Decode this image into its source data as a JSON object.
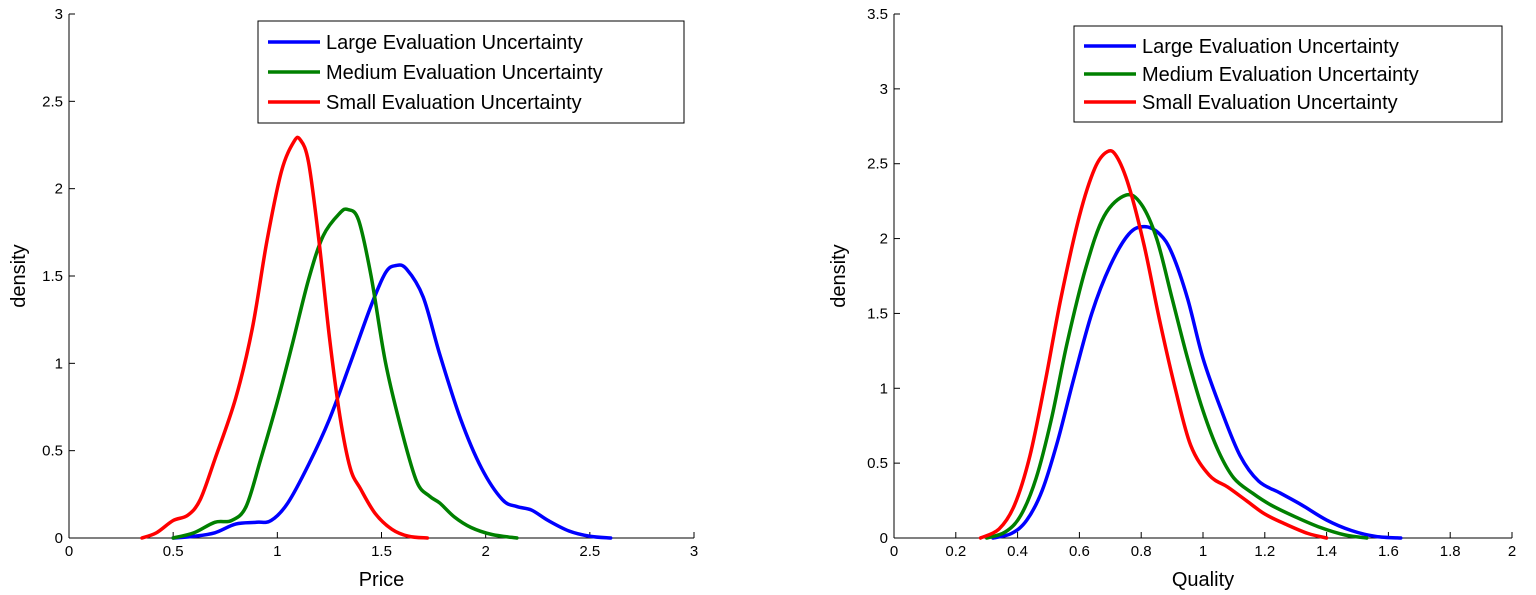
{
  "chart_data": [
    {
      "type": "line",
      "title": "",
      "xlabel": "Price",
      "ylabel": "density",
      "xlim": [
        0,
        3
      ],
      "ylim": [
        0,
        3
      ],
      "xticks": [
        "0",
        "0.5",
        "1",
        "1.5",
        "2",
        "2.5",
        "3"
      ],
      "yticks": [
        "0",
        "0.5",
        "1",
        "1.5",
        "2",
        "2.5",
        "3"
      ],
      "legend_position": "top-right",
      "grid": false,
      "series": [
        {
          "name": "Large Evaluation Uncertainty",
          "color": "#0000ff",
          "points": [
            [
              0.5,
              0
            ],
            [
              0.6,
              0.01
            ],
            [
              0.7,
              0.03
            ],
            [
              0.8,
              0.08
            ],
            [
              0.9,
              0.09
            ],
            [
              0.97,
              0.1
            ],
            [
              1.05,
              0.2
            ],
            [
              1.15,
              0.42
            ],
            [
              1.25,
              0.68
            ],
            [
              1.35,
              1.0
            ],
            [
              1.45,
              1.33
            ],
            [
              1.52,
              1.52
            ],
            [
              1.57,
              1.56
            ],
            [
              1.62,
              1.54
            ],
            [
              1.7,
              1.38
            ],
            [
              1.78,
              1.05
            ],
            [
              1.88,
              0.68
            ],
            [
              1.98,
              0.4
            ],
            [
              2.08,
              0.22
            ],
            [
              2.15,
              0.18
            ],
            [
              2.22,
              0.16
            ],
            [
              2.3,
              0.1
            ],
            [
              2.4,
              0.04
            ],
            [
              2.5,
              0.01
            ],
            [
              2.6,
              0.0
            ]
          ]
        },
        {
          "name": "Medium Evaluation Uncertainty",
          "color": "#008000",
          "points": [
            [
              0.5,
              0
            ],
            [
              0.6,
              0.03
            ],
            [
              0.7,
              0.09
            ],
            [
              0.78,
              0.1
            ],
            [
              0.85,
              0.18
            ],
            [
              0.92,
              0.45
            ],
            [
              1.0,
              0.78
            ],
            [
              1.07,
              1.1
            ],
            [
              1.15,
              1.48
            ],
            [
              1.22,
              1.73
            ],
            [
              1.3,
              1.86
            ],
            [
              1.34,
              1.88
            ],
            [
              1.39,
              1.82
            ],
            [
              1.45,
              1.5
            ],
            [
              1.52,
              1.0
            ],
            [
              1.6,
              0.6
            ],
            [
              1.67,
              0.32
            ],
            [
              1.73,
              0.24
            ],
            [
              1.78,
              0.2
            ],
            [
              1.85,
              0.12
            ],
            [
              1.93,
              0.06
            ],
            [
              2.03,
              0.02
            ],
            [
              2.15,
              0.0
            ]
          ]
        },
        {
          "name": "Small Evaluation Uncertainty",
          "color": "#ff0000",
          "points": [
            [
              0.35,
              0
            ],
            [
              0.42,
              0.03
            ],
            [
              0.5,
              0.1
            ],
            [
              0.57,
              0.13
            ],
            [
              0.63,
              0.22
            ],
            [
              0.7,
              0.45
            ],
            [
              0.8,
              0.8
            ],
            [
              0.88,
              1.2
            ],
            [
              0.95,
              1.7
            ],
            [
              1.02,
              2.1
            ],
            [
              1.08,
              2.27
            ],
            [
              1.11,
              2.28
            ],
            [
              1.15,
              2.15
            ],
            [
              1.2,
              1.7
            ],
            [
              1.25,
              1.15
            ],
            [
              1.3,
              0.7
            ],
            [
              1.35,
              0.4
            ],
            [
              1.4,
              0.28
            ],
            [
              1.47,
              0.14
            ],
            [
              1.55,
              0.05
            ],
            [
              1.63,
              0.01
            ],
            [
              1.72,
              0.0
            ]
          ]
        }
      ]
    },
    {
      "type": "line",
      "title": "",
      "xlabel": "Quality",
      "ylabel": "density",
      "xlim": [
        0,
        2
      ],
      "ylim": [
        0,
        3.5
      ],
      "xticks": [
        "0",
        "0.2",
        "0.4",
        "0.6",
        "0.8",
        "1",
        "1.2",
        "1.4",
        "1.6",
        "1.8",
        "2"
      ],
      "yticks": [
        "0",
        "0.5",
        "1",
        "1.5",
        "2",
        "2.5",
        "3",
        "3.5"
      ],
      "legend_position": "top-right",
      "grid": false,
      "series": [
        {
          "name": "Large Evaluation Uncertainty",
          "color": "#0000ff",
          "points": [
            [
              0.32,
              0
            ],
            [
              0.38,
              0.03
            ],
            [
              0.43,
              0.12
            ],
            [
              0.48,
              0.32
            ],
            [
              0.53,
              0.65
            ],
            [
              0.58,
              1.05
            ],
            [
              0.64,
              1.5
            ],
            [
              0.7,
              1.82
            ],
            [
              0.76,
              2.03
            ],
            [
              0.81,
              2.08
            ],
            [
              0.86,
              2.03
            ],
            [
              0.9,
              1.9
            ],
            [
              0.95,
              1.6
            ],
            [
              1.0,
              1.2
            ],
            [
              1.06,
              0.85
            ],
            [
              1.12,
              0.55
            ],
            [
              1.18,
              0.38
            ],
            [
              1.25,
              0.3
            ],
            [
              1.32,
              0.22
            ],
            [
              1.4,
              0.12
            ],
            [
              1.48,
              0.05
            ],
            [
              1.56,
              0.01
            ],
            [
              1.64,
              0.0
            ]
          ]
        },
        {
          "name": "Medium Evaluation Uncertainty",
          "color": "#008000",
          "points": [
            [
              0.3,
              0
            ],
            [
              0.36,
              0.04
            ],
            [
              0.41,
              0.15
            ],
            [
              0.46,
              0.4
            ],
            [
              0.51,
              0.8
            ],
            [
              0.56,
              1.3
            ],
            [
              0.62,
              1.8
            ],
            [
              0.68,
              2.15
            ],
            [
              0.75,
              2.29
            ],
            [
              0.8,
              2.23
            ],
            [
              0.85,
              2.0
            ],
            [
              0.9,
              1.6
            ],
            [
              0.95,
              1.2
            ],
            [
              1.0,
              0.85
            ],
            [
              1.05,
              0.58
            ],
            [
              1.1,
              0.4
            ],
            [
              1.16,
              0.3
            ],
            [
              1.22,
              0.22
            ],
            [
              1.3,
              0.14
            ],
            [
              1.38,
              0.07
            ],
            [
              1.46,
              0.02
            ],
            [
              1.53,
              0.0
            ]
          ]
        },
        {
          "name": "Small Evaluation Uncertainty",
          "color": "#ff0000",
          "points": [
            [
              0.28,
              0
            ],
            [
              0.34,
              0.06
            ],
            [
              0.39,
              0.22
            ],
            [
              0.44,
              0.55
            ],
            [
              0.49,
              1.05
            ],
            [
              0.54,
              1.6
            ],
            [
              0.6,
              2.15
            ],
            [
              0.65,
              2.47
            ],
            [
              0.69,
              2.58
            ],
            [
              0.72,
              2.55
            ],
            [
              0.76,
              2.35
            ],
            [
              0.81,
              1.95
            ],
            [
              0.86,
              1.45
            ],
            [
              0.91,
              1.0
            ],
            [
              0.96,
              0.62
            ],
            [
              1.02,
              0.42
            ],
            [
              1.08,
              0.34
            ],
            [
              1.14,
              0.25
            ],
            [
              1.2,
              0.16
            ],
            [
              1.27,
              0.09
            ],
            [
              1.34,
              0.03
            ],
            [
              1.4,
              0.0
            ]
          ]
        }
      ]
    }
  ]
}
